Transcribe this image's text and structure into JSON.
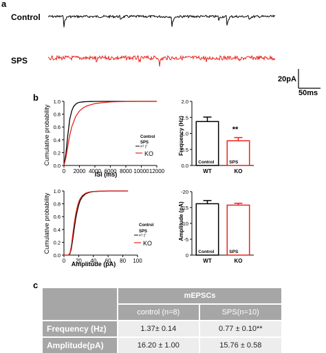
{
  "panels": {
    "a": "a",
    "b": "b",
    "c": "c"
  },
  "traces": {
    "control_label": "Control",
    "sps_label": "SPS",
    "scale_y": "20pA",
    "scale_x": "50ms",
    "colors": {
      "control": "#000000",
      "sps": "#e8221b"
    }
  },
  "chart_data": [
    {
      "id": "isi-cdf",
      "type": "line",
      "xlabel": "ISI (ms)",
      "ylabel": "Cumulative probability",
      "xlim": [
        0,
        12000
      ],
      "ylim": [
        0,
        1.0
      ],
      "xticks": [
        "0",
        "2000",
        "4000",
        "6000",
        "8000",
        "10000",
        "12000"
      ],
      "yticks": [
        "0.0",
        "0.2",
        "0.4",
        "0.6",
        "0.8",
        "1.0"
      ],
      "legend": {
        "lines": [
          "Control",
          "SPS",
          "KO"
        ],
        "note": "ʷᵀ Γ",
        "placement": "right"
      },
      "series": [
        {
          "name": "Control",
          "color": "#000000",
          "x": [
            0,
            250,
            500,
            750,
            1000,
            1250,
            1500,
            1750,
            2000,
            2500,
            3000,
            3500,
            4000,
            5000,
            6000,
            8000,
            10000,
            12000
          ],
          "y": [
            0,
            0.18,
            0.47,
            0.72,
            0.85,
            0.92,
            0.955,
            0.975,
            0.985,
            0.993,
            0.996,
            0.998,
            0.999,
            1.0,
            1.0,
            1.0,
            1.0,
            1.0
          ]
        },
        {
          "name": "KO",
          "color": "#e8221b",
          "x": [
            0,
            250,
            500,
            750,
            1000,
            1500,
            2000,
            2500,
            3000,
            3500,
            4000,
            5000,
            6000,
            7000,
            8000,
            10000,
            12000
          ],
          "y": [
            0,
            0.12,
            0.3,
            0.47,
            0.6,
            0.76,
            0.85,
            0.9,
            0.93,
            0.95,
            0.965,
            0.98,
            0.99,
            0.995,
            0.998,
            1.0,
            1.0
          ]
        }
      ]
    },
    {
      "id": "frequency-bar",
      "type": "bar",
      "ylabel": "Frequency (Hz)",
      "ylim": [
        0,
        2.0
      ],
      "yticks": [
        "0.0",
        "0.5",
        "1.0",
        "1.5",
        "2.0"
      ],
      "categories": [
        "WT",
        "KO"
      ],
      "inner_labels": [
        "Control",
        "SPS"
      ],
      "values": [
        1.37,
        0.77
      ],
      "errors": [
        0.14,
        0.1
      ],
      "significance": "**",
      "colors": [
        "#000000",
        "#e8221b"
      ]
    },
    {
      "id": "amplitude-cdf",
      "type": "line",
      "xlabel": "Amplitude (pA)",
      "ylabel": "Cumulative probability",
      "xlim": [
        0,
        100
      ],
      "ylim": [
        0,
        1.0
      ],
      "xticks": [
        "0",
        "20",
        "40",
        "60",
        "80",
        "100"
      ],
      "yticks": [
        "0.0",
        "0.2",
        "0.4",
        "0.6",
        "0.8",
        "1.0"
      ],
      "legend": {
        "lines": [
          "Control",
          "SPS",
          "KO"
        ],
        "note": "ʷᵀ Γ",
        "placement": "right"
      },
      "series": [
        {
          "name": "Control",
          "color": "#000000",
          "x": [
            0,
            6,
            8,
            10,
            12,
            14,
            16,
            18,
            20,
            22,
            25,
            30,
            35,
            40,
            50,
            60,
            75,
            87
          ],
          "y": [
            0,
            0,
            0.02,
            0.1,
            0.25,
            0.42,
            0.57,
            0.69,
            0.78,
            0.85,
            0.91,
            0.96,
            0.98,
            0.99,
            0.997,
            1.0,
            1.0,
            1.0
          ]
        },
        {
          "name": "KO",
          "color": "#e8221b",
          "x": [
            0,
            6,
            8,
            10,
            12,
            14,
            16,
            18,
            20,
            22,
            25,
            30,
            35,
            40,
            50,
            60,
            75,
            87
          ],
          "y": [
            0,
            0,
            0.03,
            0.14,
            0.32,
            0.5,
            0.64,
            0.75,
            0.83,
            0.88,
            0.93,
            0.97,
            0.985,
            0.993,
            0.998,
            1.0,
            1.0,
            1.0
          ]
        }
      ]
    },
    {
      "id": "amplitude-bar",
      "type": "bar",
      "ylabel": "Amplitude (pA)",
      "ylim": [
        0,
        -20
      ],
      "yticks": [
        "0",
        "-5",
        "-10",
        "-15",
        "-20"
      ],
      "categories": [
        "WT",
        "KO"
      ],
      "inner_labels": [
        "Control",
        "SPS"
      ],
      "values": [
        -16.2,
        -15.76
      ],
      "errors": [
        1.0,
        0.58
      ],
      "colors": [
        "#000000",
        "#e8221b"
      ]
    }
  ],
  "table": {
    "group_header": "mEPSCs",
    "columns": [
      "control (n=8)",
      "SPS(n=10)"
    ],
    "rows": [
      {
        "label": "Frequency (Hz)",
        "control": "1.37± 0.14",
        "sps": "0.77 ± 0.10**"
      },
      {
        "label": "Amplitude(pA)",
        "control": "16.20 ± 1.00",
        "sps": "15.76 ± 0.58"
      }
    ]
  }
}
